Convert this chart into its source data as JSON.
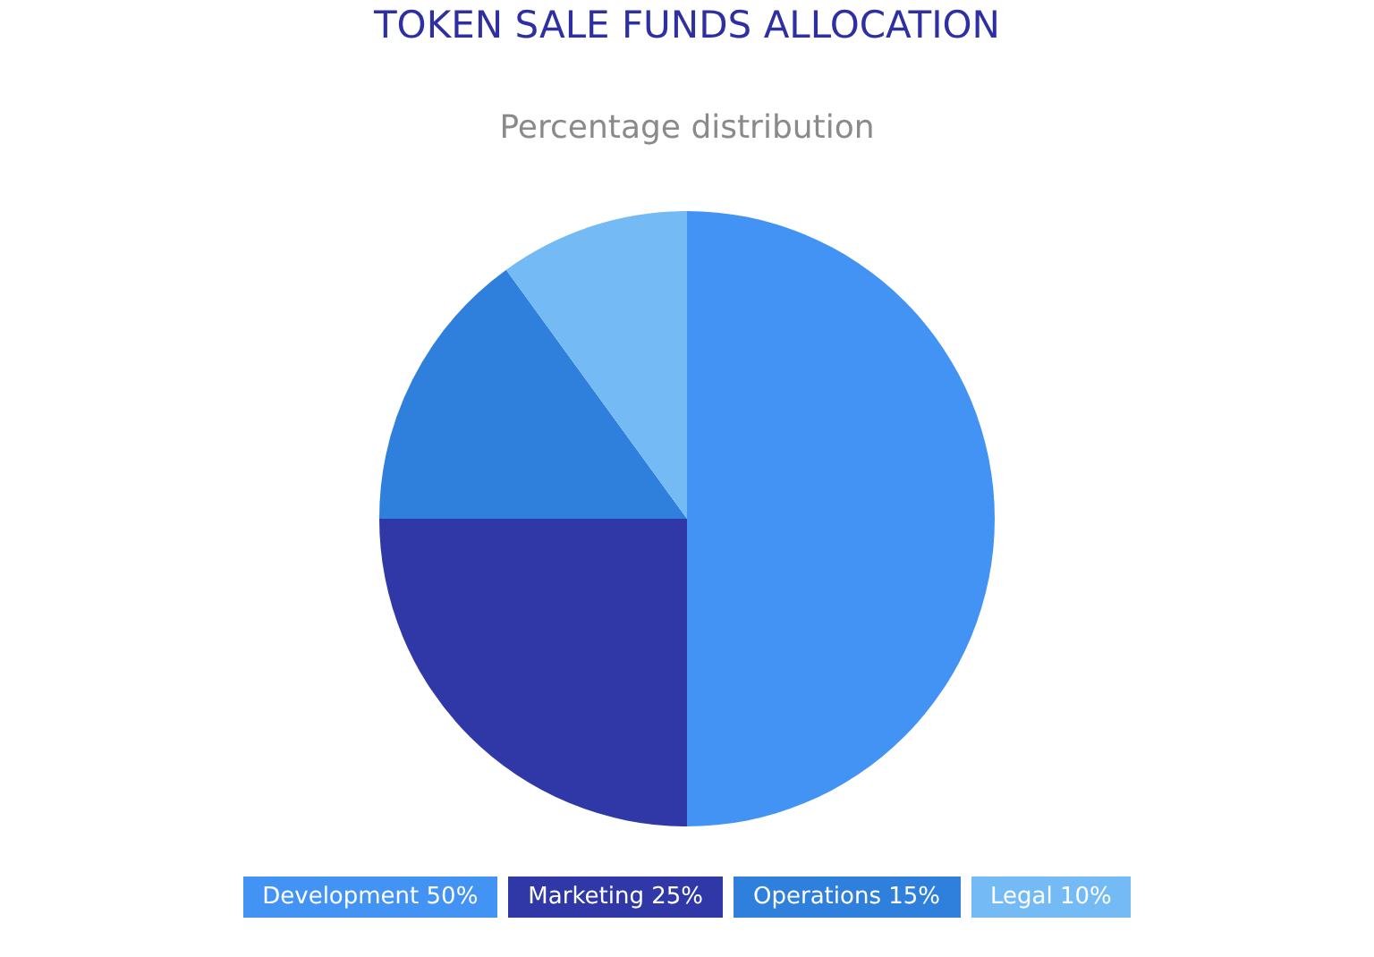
{
  "chart_data": {
    "type": "pie",
    "title": "TOKEN SALE FUNDS ALLOCATION",
    "subtitle": "Percentage distribution",
    "categories": [
      "Development 50%",
      "Marketing 25%",
      "Operations 15%",
      "Legal 10%"
    ],
    "values": [
      50,
      25,
      15,
      10
    ],
    "colors": [
      "#4393f5",
      "#3038a8",
      "#2f7fdc",
      "#74baf5"
    ],
    "legend": "bottom"
  }
}
